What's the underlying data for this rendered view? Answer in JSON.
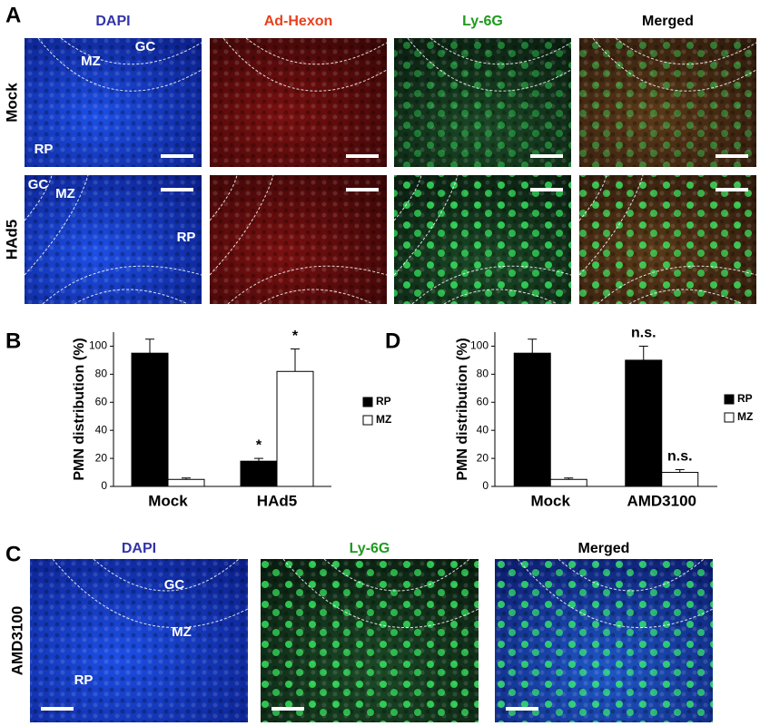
{
  "panel_a": {
    "letter": "A",
    "columns": [
      "DAPI",
      "Ad-Hexon",
      "Ly-6G",
      "Merged"
    ],
    "rows": [
      "Mock",
      "HAd5"
    ],
    "mock_regions": [
      "GC",
      "MZ",
      "RP"
    ],
    "had5_regions": [
      "GC",
      "MZ",
      "RP"
    ]
  },
  "panel_c": {
    "letter": "C",
    "columns": [
      "DAPI",
      "Ly-6G",
      "Merged"
    ],
    "row": "AMD3100",
    "regions": [
      "GC",
      "MZ",
      "RP"
    ]
  },
  "chart_data": [
    {
      "type": "bar",
      "panel_label": "B",
      "ylabel": "PMN distribution (%)",
      "categories": [
        "Mock",
        "HAd5"
      ],
      "series": [
        {
          "name": "RP",
          "color": "#000000",
          "values": [
            95,
            18
          ],
          "errors": [
            10,
            2
          ],
          "annotations": [
            null,
            "*"
          ]
        },
        {
          "name": "MZ",
          "color": "#ffffff",
          "values": [
            5,
            82
          ],
          "errors": [
            1,
            16
          ],
          "annotations": [
            null,
            "*"
          ]
        }
      ],
      "ylim": [
        0,
        110
      ],
      "yticks": [
        0,
        20,
        40,
        60,
        80,
        100
      ],
      "legend": "right"
    },
    {
      "type": "bar",
      "panel_label": "D",
      "ylabel": "PMN distribution (%)",
      "categories": [
        "Mock",
        "AMD3100"
      ],
      "series": [
        {
          "name": "RP",
          "color": "#000000",
          "values": [
            95,
            90
          ],
          "errors": [
            10,
            10
          ],
          "annotations": [
            null,
            "n.s."
          ]
        },
        {
          "name": "MZ",
          "color": "#ffffff",
          "values": [
            5,
            10
          ],
          "errors": [
            1,
            2
          ],
          "annotations": [
            null,
            "n.s."
          ]
        }
      ],
      "ylim": [
        0,
        110
      ],
      "yticks": [
        0,
        20,
        40,
        60,
        80,
        100
      ],
      "legend": "right"
    }
  ]
}
